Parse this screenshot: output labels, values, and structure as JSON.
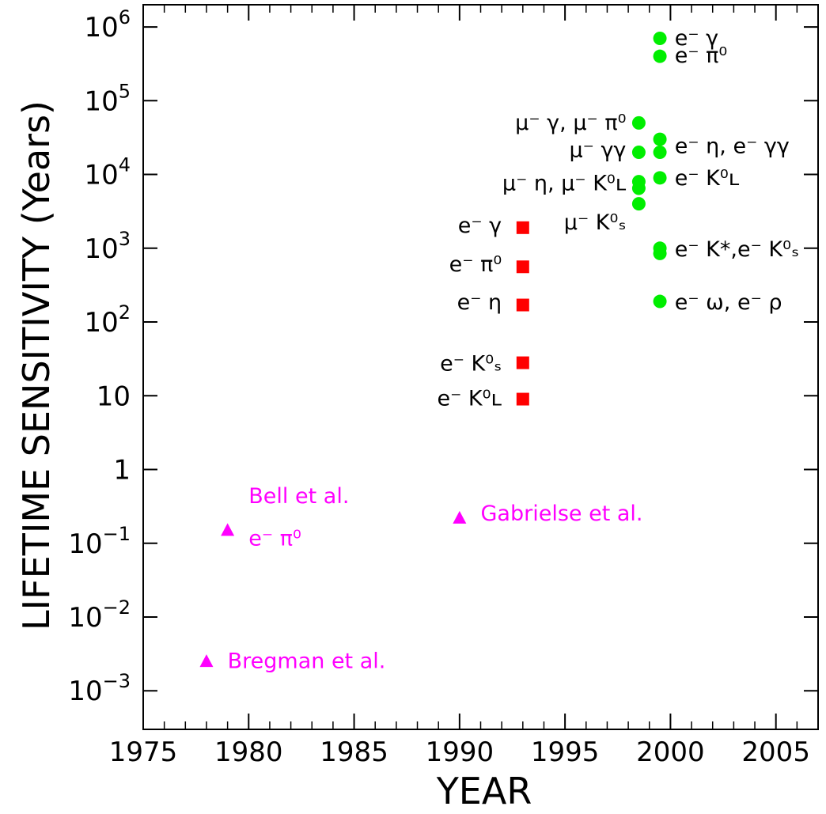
{
  "chart_data": {
    "type": "scatter",
    "xlabel": "YEAR",
    "ylabel": "LIFETIME SENSITIVITY (Years)",
    "x_scale": "linear",
    "y_scale": "log",
    "xlim": [
      1975,
      2007
    ],
    "ylim": [
      0.0003,
      2000000
    ],
    "x_ticks": [
      {
        "value": 1975,
        "label": "1975"
      },
      {
        "value": 1980,
        "label": "1980"
      },
      {
        "value": 1985,
        "label": "1985"
      },
      {
        "value": 1990,
        "label": "1990"
      },
      {
        "value": 1995,
        "label": "1995"
      },
      {
        "value": 2000,
        "label": "2000"
      },
      {
        "value": 2005,
        "label": "2005"
      }
    ],
    "y_ticks": [
      {
        "value": 0.001,
        "base": "10",
        "exp": "−3"
      },
      {
        "value": 0.01,
        "base": "10",
        "exp": "−2"
      },
      {
        "value": 0.1,
        "base": "10",
        "exp": "−1"
      },
      {
        "value": 1,
        "base": "1",
        "exp": ""
      },
      {
        "value": 10,
        "base": "10",
        "exp": ""
      },
      {
        "value": 100,
        "base": "10",
        "exp": "2"
      },
      {
        "value": 1000,
        "base": "10",
        "exp": "3"
      },
      {
        "value": 10000,
        "base": "10",
        "exp": "4"
      },
      {
        "value": 100000,
        "base": "10",
        "exp": "5"
      },
      {
        "value": 1000000,
        "base": "10",
        "exp": "6"
      }
    ],
    "grid": false,
    "series": [
      {
        "marker": "triangle",
        "color": "#ff00ff",
        "points": [
          {
            "x": 1978,
            "y": 0.0025
          },
          {
            "x": 1979,
            "y": 0.15
          },
          {
            "x": 1990,
            "y": 0.22
          }
        ]
      },
      {
        "marker": "square",
        "color": "#ff0000",
        "points": [
          {
            "x": 1993,
            "y": 1900
          },
          {
            "x": 1993,
            "y": 560
          },
          {
            "x": 1993,
            "y": 170
          },
          {
            "x": 1993,
            "y": 28
          },
          {
            "x": 1993,
            "y": 9
          }
        ]
      },
      {
        "marker": "circle",
        "color": "#00ee00",
        "points": [
          {
            "x": 1998.5,
            "y": 50000
          },
          {
            "x": 1998.5,
            "y": 20000
          },
          {
            "x": 1998.5,
            "y": 8000
          },
          {
            "x": 1998.5,
            "y": 6500
          },
          {
            "x": 1998.5,
            "y": 4000
          },
          {
            "x": 1999.5,
            "y": 700000
          },
          {
            "x": 1999.5,
            "y": 400000
          },
          {
            "x": 1999.5,
            "y": 30000
          },
          {
            "x": 1999.5,
            "y": 20000
          },
          {
            "x": 1999.5,
            "y": 9000
          },
          {
            "x": 1999.5,
            "y": 1000
          },
          {
            "x": 1999.5,
            "y": 850
          },
          {
            "x": 1999.5,
            "y": 190
          }
        ]
      }
    ],
    "annotations": [
      {
        "text": "e⁻ γ",
        "x": 2000.2,
        "y": 730000,
        "anchor": "start",
        "color": "#000000"
      },
      {
        "text": "e⁻ π⁰",
        "x": 2000.2,
        "y": 420000,
        "anchor": "start",
        "color": "#000000"
      },
      {
        "text": "μ⁻ γ, μ⁻ π⁰",
        "x": 1997.9,
        "y": 52000,
        "anchor": "end",
        "color": "#000000"
      },
      {
        "text": "μ⁻ γγ",
        "x": 1997.9,
        "y": 22000,
        "anchor": "end",
        "color": "#000000"
      },
      {
        "text": "e⁻ η, e⁻ γγ",
        "x": 2000.2,
        "y": 25000,
        "anchor": "start",
        "color": "#000000"
      },
      {
        "text": "μ⁻ η, μ⁻ K⁰ʟ",
        "x": 1997.9,
        "y": 7800,
        "anchor": "end",
        "color": "#000000"
      },
      {
        "text": "e⁻ K⁰ʟ",
        "x": 2000.2,
        "y": 9200,
        "anchor": "start",
        "color": "#000000"
      },
      {
        "text": "μ⁻ K⁰ₛ",
        "x": 1997.9,
        "y": 2300,
        "anchor": "end",
        "color": "#000000"
      },
      {
        "text": "e⁻ γ",
        "x": 1992.0,
        "y": 2100,
        "anchor": "end",
        "color": "#000000"
      },
      {
        "text": "e⁻ K*,e⁻ K⁰ₛ",
        "x": 2000.2,
        "y": 1000,
        "anchor": "start",
        "color": "#000000"
      },
      {
        "text": "e⁻ π⁰",
        "x": 1992.0,
        "y": 620,
        "anchor": "end",
        "color": "#000000"
      },
      {
        "text": "e⁻ ω,  e⁻ ρ",
        "x": 2000.2,
        "y": 190,
        "anchor": "start",
        "color": "#000000"
      },
      {
        "text": "e⁻ η",
        "x": 1992.0,
        "y": 190,
        "anchor": "end",
        "color": "#000000"
      },
      {
        "text": "e⁻ K⁰ₛ",
        "x": 1992.0,
        "y": 28,
        "anchor": "end",
        "color": "#000000"
      },
      {
        "text": "e⁻ K⁰ʟ",
        "x": 1992.0,
        "y": 9.5,
        "anchor": "end",
        "color": "#000000"
      },
      {
        "text": "Bell et al.",
        "x": 1980.0,
        "y": 0.45,
        "anchor": "start",
        "color": "#ff00ff"
      },
      {
        "text": "e⁻ π⁰",
        "x": 1980.0,
        "y": 0.12,
        "anchor": "start",
        "color": "#ff00ff"
      },
      {
        "text": "Gabrielse et al.",
        "x": 1991.0,
        "y": 0.26,
        "anchor": "start",
        "color": "#ff00ff"
      },
      {
        "text": "Bregman et al.",
        "x": 1979.0,
        "y": 0.0026,
        "anchor": "start",
        "color": "#ff00ff"
      }
    ]
  }
}
